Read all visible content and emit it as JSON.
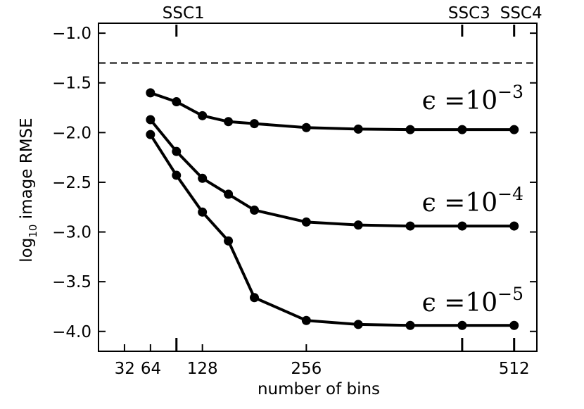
{
  "chart_data": {
    "type": "line",
    "xlabel": "number of bins",
    "ylabel_prefix": "log",
    "ylabel_sub": "10",
    "ylabel_rest": " image RMSE",
    "xlim": [
      0,
      540
    ],
    "ylim": [
      -4.2,
      -0.9
    ],
    "x_ticks": [
      {
        "value": 32,
        "label": "32"
      },
      {
        "value": 64,
        "label": "64"
      },
      {
        "value": 128,
        "label": "128"
      },
      {
        "value": 256,
        "label": "256"
      },
      {
        "value": 512,
        "label": "512"
      }
    ],
    "x_minor_ticks": [
      96
    ],
    "y_ticks": [
      {
        "value": -1.0,
        "label": "−1.0"
      },
      {
        "value": -1.5,
        "label": "−1.5"
      },
      {
        "value": -2.0,
        "label": "−2.0"
      },
      {
        "value": -2.5,
        "label": "−2.5"
      },
      {
        "value": -3.0,
        "label": "−3.0"
      },
      {
        "value": -3.5,
        "label": "−3.5"
      },
      {
        "value": -4.0,
        "label": "−4.0"
      }
    ],
    "top_ticks": [
      {
        "value": 96,
        "label": "SSC1"
      },
      {
        "value": 448,
        "label": "SSC3"
      },
      {
        "value": 512,
        "label": "SSC4"
      }
    ],
    "reference_line": {
      "y": -1.3,
      "style": "dashed"
    },
    "series": [
      {
        "name": "eps-1e-3",
        "label_base": "ϵ =10",
        "label_exp": "−3",
        "x": [
          64,
          96,
          128,
          160,
          192,
          256,
          320,
          384,
          448,
          512
        ],
        "y": [
          -1.6,
          -1.69,
          -1.83,
          -1.89,
          -1.91,
          -1.95,
          -1.965,
          -1.97,
          -1.97,
          -1.97
        ]
      },
      {
        "name": "eps-1e-4",
        "label_base": "ϵ =10",
        "label_exp": "−4",
        "x": [
          64,
          96,
          128,
          160,
          192,
          256,
          320,
          384,
          448,
          512
        ],
        "y": [
          -1.87,
          -2.19,
          -2.46,
          -2.62,
          -2.78,
          -2.9,
          -2.93,
          -2.94,
          -2.94,
          -2.94
        ]
      },
      {
        "name": "eps-1e-5",
        "label_base": "ϵ =10",
        "label_exp": "−5",
        "x": [
          64,
          96,
          128,
          160,
          192,
          256,
          320,
          384,
          448,
          512
        ],
        "y": [
          -2.02,
          -2.43,
          -2.8,
          -3.09,
          -3.66,
          -3.89,
          -3.93,
          -3.94,
          -3.94,
          -3.94
        ]
      }
    ]
  }
}
